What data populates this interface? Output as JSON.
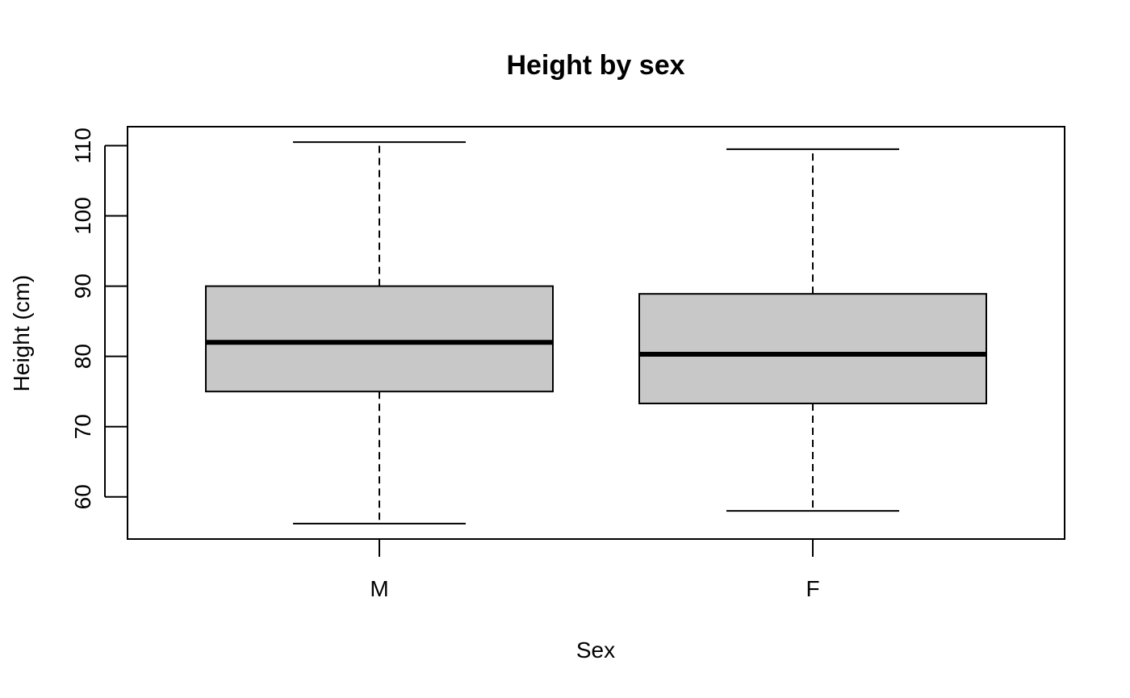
{
  "chart_data": {
    "type": "boxplot",
    "title": "Height by sex",
    "xlabel": "Sex",
    "ylabel": "Height (cm)",
    "categories": [
      "M",
      "F"
    ],
    "box_fill": "#c8c8c8",
    "boxes": [
      {
        "category": "M",
        "min": 56.2,
        "q1": 75.0,
        "median": 82.0,
        "q3": 90.0,
        "max": 110.5
      },
      {
        "category": "F",
        "min": 58.0,
        "q1": 73.3,
        "median": 80.3,
        "q3": 88.9,
        "max": 109.5
      }
    ],
    "yticks": [
      60,
      70,
      80,
      90,
      100,
      110
    ],
    "ylim": [
      54.0,
      112.7
    ],
    "grid": false,
    "legend": "none"
  }
}
